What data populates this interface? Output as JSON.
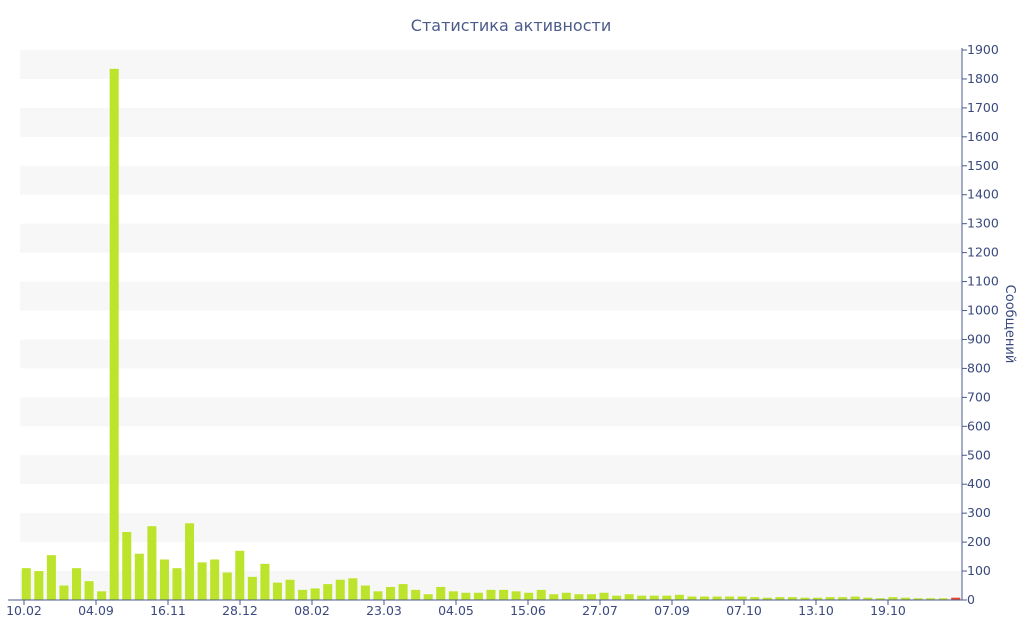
{
  "chart_data": {
    "type": "bar",
    "title": "Статистика активности",
    "xlabel": "",
    "ylabel": "Сообщений",
    "ylim": [
      0,
      1900
    ],
    "y_axis_side": "right",
    "y_ticks": [
      0,
      100,
      200,
      300,
      400,
      500,
      600,
      700,
      800,
      900,
      1000,
      1100,
      1200,
      1300,
      1400,
      1500,
      1600,
      1700,
      1800,
      1900
    ],
    "x_tick_labels": [
      "10.02",
      "04.09",
      "16.11",
      "28.12",
      "08.02",
      "23.03",
      "04.05",
      "15.06",
      "27.07",
      "07.09",
      "07.10",
      "13.10",
      "19.10"
    ],
    "grid": "alternating horizontal bands",
    "colors": {
      "bar": "#bde42c",
      "last_bar": "#e64a2e",
      "axis": "#4a5a8c",
      "band": "#f7f7f7"
    },
    "values": [
      110,
      100,
      155,
      50,
      110,
      65,
      30,
      1835,
      235,
      160,
      255,
      140,
      110,
      265,
      130,
      140,
      95,
      170,
      80,
      125,
      60,
      70,
      35,
      40,
      55,
      70,
      75,
      50,
      30,
      45,
      55,
      35,
      20,
      45,
      30,
      25,
      25,
      35,
      35,
      30,
      25,
      35,
      20,
      25,
      20,
      20,
      25,
      15,
      20,
      15,
      15,
      15,
      18,
      12,
      12,
      12,
      12,
      12,
      10,
      8,
      10,
      10,
      8,
      8,
      10,
      10,
      12,
      8,
      6,
      10,
      8,
      6,
      6,
      6,
      8
    ],
    "last_bar_highlighted": true
  }
}
